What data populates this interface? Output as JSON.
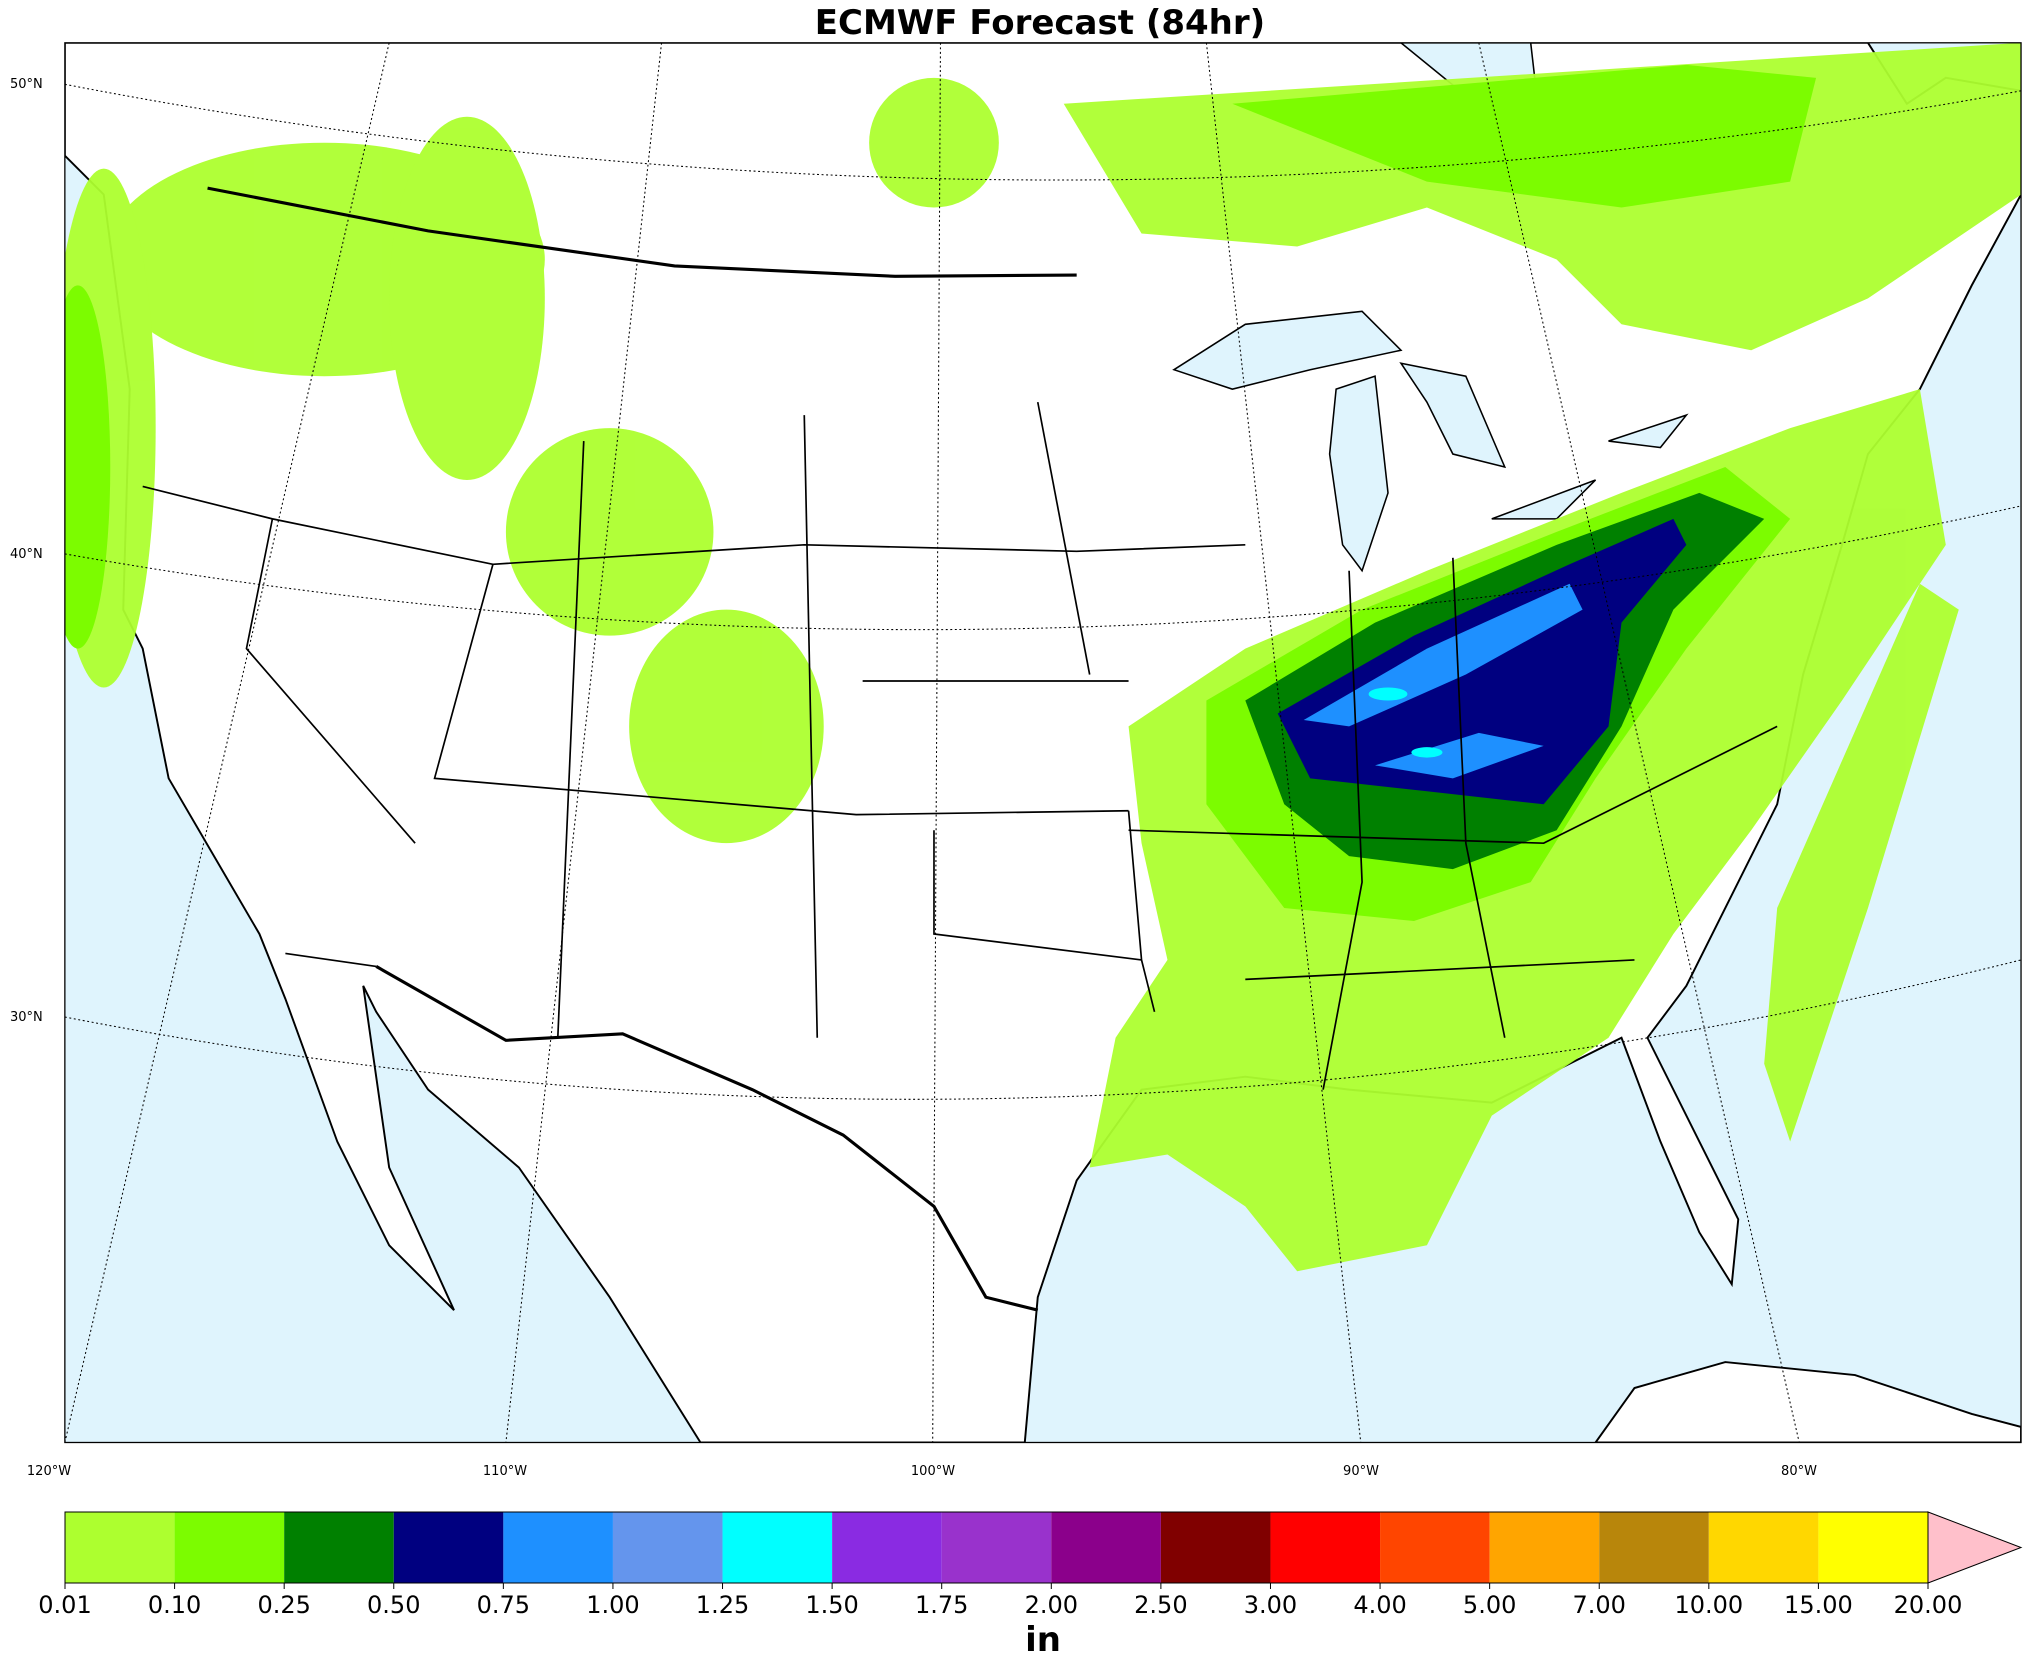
{
  "title": "ECMWF Forecast (84hr)",
  "lat_labels": [
    "50°N",
    "40°N",
    "30°N"
  ],
  "lon_labels": [
    "120°W",
    "110°W",
    "100°W",
    "90°W",
    "80°W"
  ],
  "colorbar": {
    "unit": "in",
    "ticks": [
      {
        "value": 0.01,
        "label": "0.01"
      },
      {
        "value": 0.1,
        "label": "0.10"
      },
      {
        "value": 0.25,
        "label": "0.25"
      },
      {
        "value": 0.5,
        "label": "0.50"
      },
      {
        "value": 0.75,
        "label": "0.75"
      },
      {
        "value": 1,
        "label": "1.00"
      },
      {
        "value": 1.25,
        "label": "1.25"
      },
      {
        "value": 1.5,
        "label": "1.50"
      },
      {
        "value": 1.75,
        "label": "1.75"
      },
      {
        "value": 2,
        "label": "2.00"
      },
      {
        "value": 2.5,
        "label": "2.50"
      },
      {
        "value": 3,
        "label": "3.00"
      },
      {
        "value": 4,
        "label": "4.00"
      },
      {
        "value": 5,
        "label": "5.00"
      },
      {
        "value": 7,
        "label": "7.00"
      },
      {
        "value": 10,
        "label": "10.00"
      },
      {
        "value": 15,
        "label": "15.00"
      },
      {
        "value": 20,
        "label": "20.00"
      }
    ],
    "colors": [
      "#adff2f",
      "#7cfc00",
      "#008000",
      "#000080",
      "#1e90ff",
      "#6495ed",
      "#00ffff",
      "#8a2be2",
      "#9932cc",
      "#8b008b",
      "#800000",
      "#ff0000",
      "#ff4500",
      "#ffa500",
      "#b8860b",
      "#ffd700",
      "#ffff00"
    ],
    "extend_color": "#ffc0cb"
  }
}
